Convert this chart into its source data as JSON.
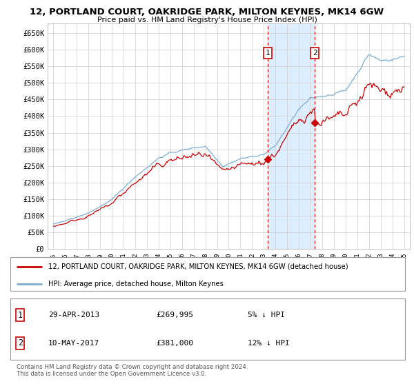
{
  "title": "12, PORTLAND COURT, OAKRIDGE PARK, MILTON KEYNES, MK14 6GW",
  "subtitle": "Price paid vs. HM Land Registry's House Price Index (HPI)",
  "ylabel_ticks": [
    0,
    50000,
    100000,
    150000,
    200000,
    250000,
    300000,
    350000,
    400000,
    450000,
    500000,
    550000,
    600000,
    650000
  ],
  "ylim": [
    0,
    680000
  ],
  "xlim_start": 1994.5,
  "xlim_end": 2025.5,
  "transaction1": {
    "label": "1",
    "date": "29-APR-2013",
    "price": 269995,
    "pct": "5% ↓ HPI",
    "x": 2013.33
  },
  "transaction2": {
    "label": "2",
    "date": "10-MAY-2017",
    "price": 381000,
    "pct": "12% ↓ HPI",
    "x": 2017.37
  },
  "legend_line1": "12, PORTLAND COURT, OAKRIDGE PARK, MILTON KEYNES, MK14 6GW (detached house)",
  "legend_line2": "HPI: Average price, detached house, Milton Keynes",
  "footer": "Contains HM Land Registry data © Crown copyright and database right 2024.\nThis data is licensed under the Open Government Licence v3.0.",
  "line_color_property": "#cc0000",
  "line_color_hpi": "#7aadd4",
  "shade_color": "#ddeeff",
  "grid_color": "#cccccc",
  "background_color": "#ffffff"
}
